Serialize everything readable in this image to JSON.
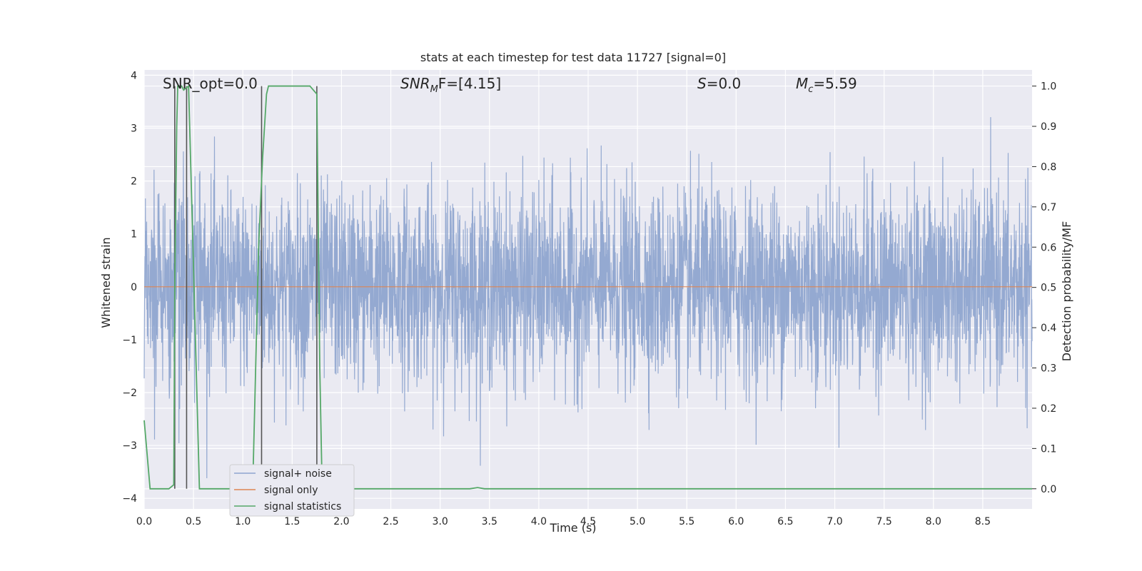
{
  "chart_data": {
    "type": "line",
    "title": "stats at each timestep for test data 11727 [signal=0]",
    "xlabel": "Time (s)",
    "ylabel": "Whitened strain",
    "ylabel_right": "Detection probability/MF",
    "xlim": [
      0,
      9.0
    ],
    "ylim": [
      -4.2,
      4.1
    ],
    "ylim_right": [
      -0.05,
      1.04
    ],
    "x_ticks": [
      0.0,
      0.5,
      1.0,
      1.5,
      2.0,
      2.5,
      3.0,
      3.5,
      4.0,
      4.5,
      5.0,
      5.5,
      6.0,
      6.5,
      7.0,
      7.5,
      8.0,
      8.5
    ],
    "x_tick_labels": [
      "0.0",
      "0.5",
      "1.0",
      "1.5",
      "2.0",
      "2.5",
      "3.0",
      "3.5",
      "4.0",
      "4.5",
      "5.0",
      "5.5",
      "6.0",
      "6.5",
      "7.0",
      "7.5",
      "8.0",
      "8.5"
    ],
    "y_ticks": [
      4,
      3,
      2,
      1,
      0,
      -1,
      -2,
      -3,
      -4
    ],
    "y_tick_labels": [
      "4",
      "3",
      "2",
      "1",
      "0",
      "−1",
      "−2",
      "−3",
      "−4"
    ],
    "y_right_ticks": [
      1.0,
      0.9,
      0.8,
      0.7,
      0.6,
      0.5,
      0.4,
      0.3,
      0.2,
      0.1,
      0.0
    ],
    "y_right_tick_labels": [
      "1.0",
      "0.9",
      "0.8",
      "0.7",
      "0.6",
      "0.5",
      "0.4",
      "0.3",
      "0.2",
      "0.1",
      "0.0"
    ],
    "grid": true,
    "legend_placement": "lower-left",
    "annotations": {
      "snr_opt": "SNR_opt=0.0",
      "snr_mf_base": "SNR",
      "snr_mf_sub": "M",
      "snr_mf_rest": "F=[4.15]",
      "s_italic": "S",
      "s_rest": "=0.0",
      "mc_base": "M",
      "mc_sub": "c",
      "mc_rest": "=5.59"
    },
    "series": [
      {
        "name": "signal+ noise",
        "color": "#8fa5cf",
        "description": "whitened noise time series, approx. +/-2 sigma band, rendered as dense vertical trace",
        "noise_std": 0.9,
        "x_range": [
          0,
          9.0
        ]
      },
      {
        "name": "signal only",
        "color": "#dd8452",
        "x": [
          0,
          9.0
        ],
        "y": [
          0,
          0
        ]
      },
      {
        "name": "signal statistics",
        "color": "#55a868",
        "axis": "right",
        "x": [
          0.0,
          0.06,
          0.25,
          0.3,
          0.31,
          0.33,
          0.34,
          0.38,
          0.4,
          0.45,
          0.5,
          0.56,
          0.6,
          0.8,
          1.1,
          1.12,
          1.16,
          1.2,
          1.24,
          1.26,
          1.6,
          1.68,
          1.75,
          1.76,
          1.78,
          1.8,
          1.83,
          1.9,
          3.0,
          3.3,
          3.38,
          3.45,
          9.0
        ],
        "y": [
          0.17,
          0.0,
          0.0,
          0.01,
          0.5,
          0.9,
          1.0,
          1.0,
          0.99,
          1.0,
          0.55,
          0.0,
          0.0,
          0.0,
          0.0,
          0.2,
          0.6,
          0.82,
          0.98,
          1.0,
          1.0,
          1.0,
          0.98,
          0.75,
          0.3,
          0.05,
          0.0,
          0.0,
          0.0,
          0.0,
          0.003,
          0.0,
          0.0
        ]
      }
    ],
    "vertical_markers_x": [
      0.31,
      0.43,
      1.19,
      1.75
    ]
  }
}
